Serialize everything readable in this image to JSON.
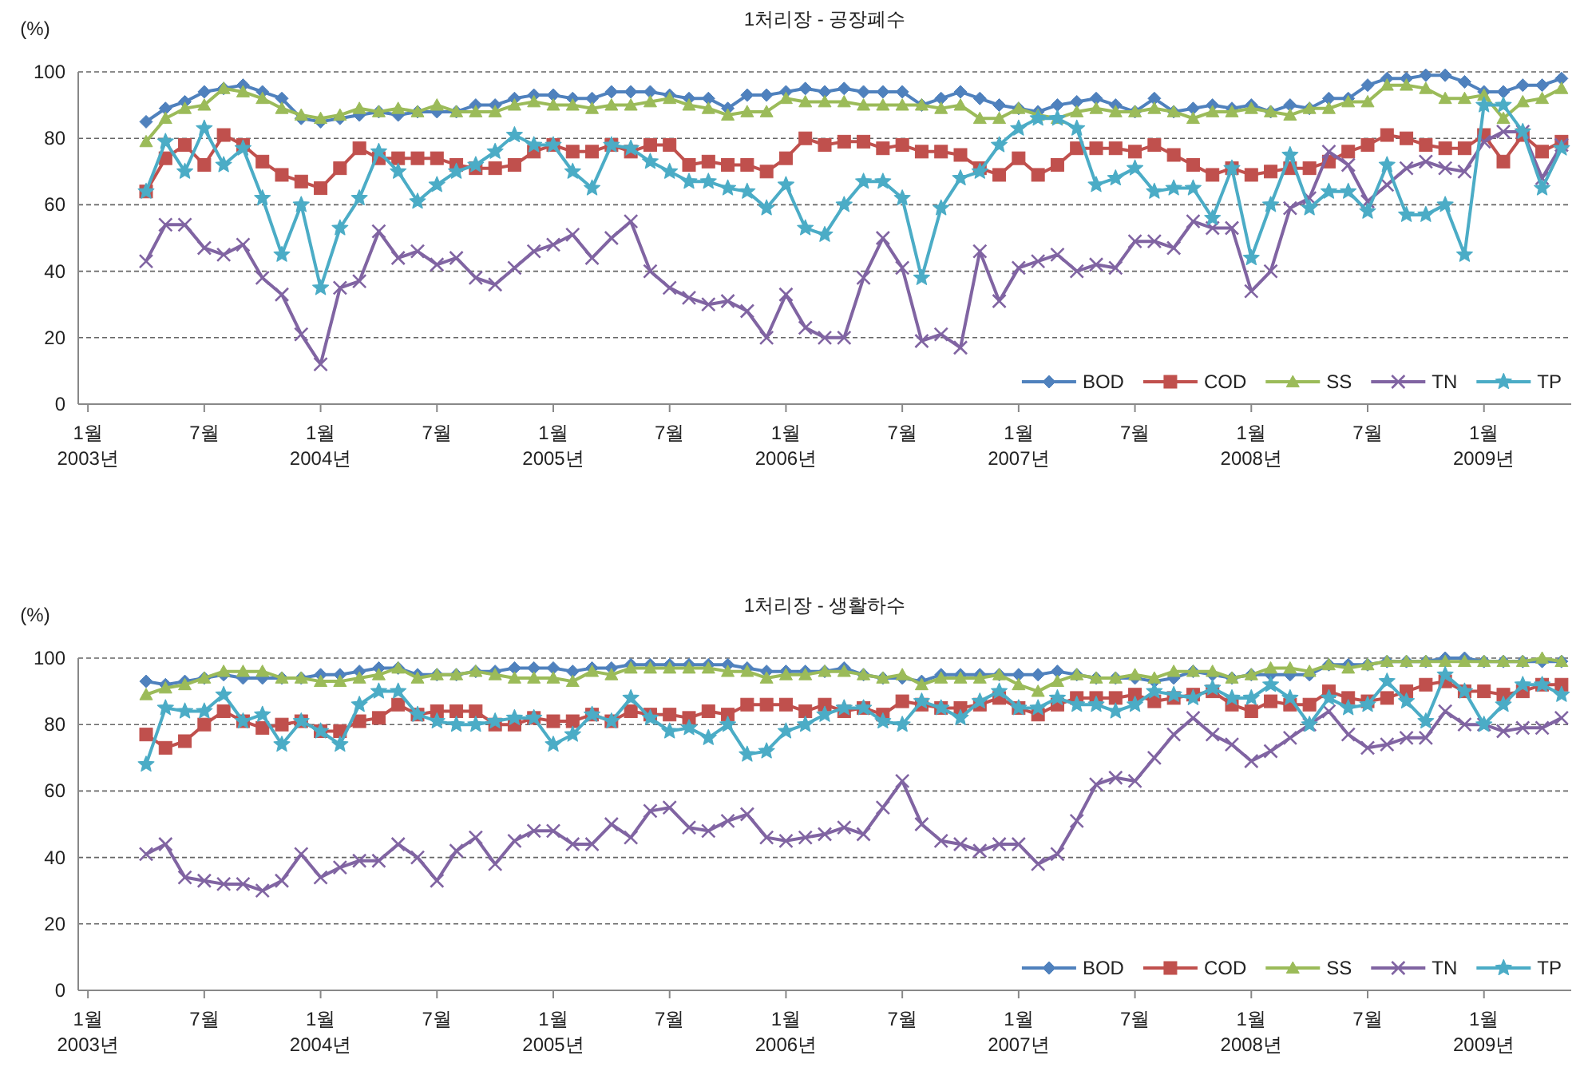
{
  "chart_data": [
    {
      "type": "line",
      "title": "1처리장 - 공장폐수",
      "ylabel": "(%)",
      "line_style": "solid",
      "grid": "y",
      "legend": "bottom right",
      "x": [
        "2003-04",
        "2003-05",
        "2003-06",
        "2003-07",
        "2003-08",
        "2003-09",
        "2003-10",
        "2003-11",
        "2003-12",
        "2004-01",
        "2004-02",
        "2004-03",
        "2004-04",
        "2004-05",
        "2004-06",
        "2004-07",
        "2004-08",
        "2004-09",
        "2004-10",
        "2004-11",
        "2004-12",
        "2005-01",
        "2005-02",
        "2005-03",
        "2005-04",
        "2005-05",
        "2005-06",
        "2005-07",
        "2005-08",
        "2005-09",
        "2005-10",
        "2005-11",
        "2005-12",
        "2006-01",
        "2006-02",
        "2006-03",
        "2006-04",
        "2006-05",
        "2006-06",
        "2006-07",
        "2006-08",
        "2006-09",
        "2006-10",
        "2006-11",
        "2006-12",
        "2007-01",
        "2007-02",
        "2007-03",
        "2007-04",
        "2007-05",
        "2007-06",
        "2007-07",
        "2007-08",
        "2007-09",
        "2007-10",
        "2007-11",
        "2007-12",
        "2008-01",
        "2008-02",
        "2008-03",
        "2008-04",
        "2008-05",
        "2008-06",
        "2008-07",
        "2008-08",
        "2008-09",
        "2008-10",
        "2008-11",
        "2008-12",
        "2009-01",
        "2009-02",
        "2009-03",
        "2009-04",
        "2009-05"
      ],
      "xlim": [
        "2002-12-16",
        "2009-05-16"
      ],
      "xticks": [
        {
          "value": "2003-01",
          "label": "1월\n2003년"
        },
        {
          "value": "2003-07",
          "label": "7월"
        },
        {
          "value": "2004-01",
          "label": "1월\n2004년"
        },
        {
          "value": "2004-07",
          "label": "7월"
        },
        {
          "value": "2005-01",
          "label": "1월\n2005년"
        },
        {
          "value": "2005-07",
          "label": "7월"
        },
        {
          "value": "2006-01",
          "label": "1월\n2006년"
        },
        {
          "value": "2006-07",
          "label": "7월"
        },
        {
          "value": "2007-01",
          "label": "1월\n2007년"
        },
        {
          "value": "2007-07",
          "label": "7월"
        },
        {
          "value": "2008-01",
          "label": "1월\n2008년"
        },
        {
          "value": "2008-07",
          "label": "7월"
        },
        {
          "value": "2009-01",
          "label": "1월\n2009년"
        }
      ],
      "ylim": [
        0,
        100
      ],
      "yticks": [
        0,
        20,
        40,
        60,
        80,
        100
      ],
      "series": [
        {
          "name": "BOD",
          "color": "#4f81bd",
          "marker": "diamond",
          "values": [
            85,
            89,
            91,
            94,
            95,
            96,
            94,
            92,
            86,
            85,
            86,
            87,
            88,
            87,
            88,
            88,
            88,
            90,
            90,
            92,
            93,
            93,
            92,
            92,
            94,
            94,
            94,
            93,
            92,
            92,
            89,
            93,
            93,
            94,
            95,
            94,
            95,
            94,
            94,
            94,
            90,
            92,
            94,
            92,
            90,
            89,
            88,
            90,
            91,
            92,
            90,
            88,
            92,
            88,
            89,
            90,
            89,
            90,
            88,
            90,
            89,
            92,
            92,
            96,
            98,
            98,
            99,
            99,
            97,
            94,
            94,
            96,
            96,
            98
          ]
        },
        {
          "name": "COD",
          "color": "#c0504d",
          "marker": "square",
          "values": [
            64,
            74,
            78,
            72,
            81,
            78,
            73,
            69,
            67,
            65,
            71,
            77,
            74,
            74,
            74,
            74,
            72,
            71,
            71,
            72,
            76,
            78,
            76,
            76,
            78,
            76,
            78,
            78,
            72,
            73,
            72,
            72,
            70,
            74,
            80,
            78,
            79,
            79,
            77,
            78,
            76,
            76,
            75,
            71,
            69,
            74,
            69,
            72,
            77,
            77,
            77,
            76,
            78,
            75,
            72,
            69,
            71,
            69,
            70,
            71,
            71,
            73,
            76,
            78,
            81,
            80,
            78,
            77,
            77,
            81,
            73,
            81,
            76,
            79
          ]
        },
        {
          "name": "SS",
          "color": "#9bbb59",
          "marker": "triangle",
          "values": [
            79,
            86,
            89,
            90,
            95,
            94,
            92,
            89,
            87,
            86,
            87,
            89,
            88,
            89,
            88,
            90,
            88,
            88,
            88,
            90,
            91,
            90,
            90,
            89,
            90,
            90,
            91,
            92,
            90,
            89,
            87,
            88,
            88,
            92,
            91,
            91,
            91,
            90,
            90,
            90,
            90,
            89,
            90,
            86,
            86,
            89,
            87,
            86,
            88,
            89,
            88,
            88,
            89,
            88,
            86,
            88,
            88,
            89,
            88,
            87,
            89,
            89,
            91,
            91,
            96,
            96,
            95,
            92,
            92,
            93,
            86,
            91,
            92,
            95
          ]
        },
        {
          "name": "TN",
          "color": "#8064a2",
          "marker": "cross",
          "values": [
            43,
            54,
            54,
            47,
            45,
            48,
            38,
            33,
            21,
            12,
            35,
            37,
            52,
            44,
            46,
            42,
            44,
            38,
            36,
            41,
            46,
            48,
            51,
            44,
            50,
            55,
            40,
            35,
            32,
            30,
            31,
            28,
            20,
            33,
            23,
            20,
            20,
            38,
            50,
            41,
            19,
            21,
            17,
            46,
            31,
            41,
            43,
            45,
            40,
            42,
            41,
            49,
            49,
            47,
            55,
            53,
            53,
            34,
            40,
            59,
            62,
            76,
            72,
            61,
            66,
            71,
            73,
            71,
            70,
            79,
            82,
            82,
            68,
            78
          ]
        },
        {
          "name": "TP",
          "color": "#4bacc6",
          "marker": "star",
          "values": [
            64,
            79,
            70,
            83,
            72,
            77,
            62,
            45,
            60,
            35,
            53,
            62,
            76,
            70,
            61,
            66,
            70,
            72,
            76,
            81,
            78,
            78,
            70,
            65,
            78,
            77,
            73,
            70,
            67,
            67,
            65,
            64,
            59,
            66,
            53,
            51,
            60,
            67,
            67,
            62,
            38,
            59,
            68,
            70,
            78,
            83,
            86,
            86,
            83,
            66,
            68,
            71,
            64,
            65,
            65,
            56,
            71,
            44,
            60,
            75,
            59,
            64,
            64,
            58,
            72,
            57,
            57,
            60,
            45,
            90,
            90,
            82,
            65,
            77
          ]
        }
      ]
    },
    {
      "type": "line",
      "title": "1처리장 - 생활하수",
      "ylabel": "(%)",
      "line_style": "solid",
      "grid": "y",
      "legend": "bottom right",
      "x": [
        "2003-04",
        "2003-05",
        "2003-06",
        "2003-07",
        "2003-08",
        "2003-09",
        "2003-10",
        "2003-11",
        "2003-12",
        "2004-01",
        "2004-02",
        "2004-03",
        "2004-04",
        "2004-05",
        "2004-06",
        "2004-07",
        "2004-08",
        "2004-09",
        "2004-10",
        "2004-11",
        "2004-12",
        "2005-01",
        "2005-02",
        "2005-03",
        "2005-04",
        "2005-05",
        "2005-06",
        "2005-07",
        "2005-08",
        "2005-09",
        "2005-10",
        "2005-11",
        "2005-12",
        "2006-01",
        "2006-02",
        "2006-03",
        "2006-04",
        "2006-05",
        "2006-06",
        "2006-07",
        "2006-08",
        "2006-09",
        "2006-10",
        "2006-11",
        "2006-12",
        "2007-01",
        "2007-02",
        "2007-03",
        "2007-04",
        "2007-05",
        "2007-06",
        "2007-07",
        "2007-08",
        "2007-09",
        "2007-10",
        "2007-11",
        "2007-12",
        "2008-01",
        "2008-02",
        "2008-03",
        "2008-04",
        "2008-05",
        "2008-06",
        "2008-07",
        "2008-08",
        "2008-09",
        "2008-10",
        "2008-11",
        "2008-12",
        "2009-01",
        "2009-02",
        "2009-03",
        "2009-04",
        "2009-05"
      ],
      "xlim": [
        "2002-12-16",
        "2009-05-16"
      ],
      "xticks": [
        {
          "value": "2003-01",
          "label": "1월\n2003년"
        },
        {
          "value": "2003-07",
          "label": "7월"
        },
        {
          "value": "2004-01",
          "label": "1월\n2004년"
        },
        {
          "value": "2004-07",
          "label": "7월"
        },
        {
          "value": "2005-01",
          "label": "1월\n2005년"
        },
        {
          "value": "2005-07",
          "label": "7월"
        },
        {
          "value": "2006-01",
          "label": "1월\n2006년"
        },
        {
          "value": "2006-07",
          "label": "7월"
        },
        {
          "value": "2007-01",
          "label": "1월\n2007년"
        },
        {
          "value": "2007-07",
          "label": "7월"
        },
        {
          "value": "2008-01",
          "label": "1월\n2008년"
        },
        {
          "value": "2008-07",
          "label": "7월"
        },
        {
          "value": "2009-01",
          "label": "1월\n2009년"
        }
      ],
      "ylim": [
        0,
        100
      ],
      "yticks": [
        0,
        20,
        40,
        60,
        80,
        100
      ],
      "series": [
        {
          "name": "BOD",
          "color": "#4f81bd",
          "marker": "diamond",
          "values": [
            93,
            92,
            93,
            94,
            95,
            94,
            94,
            94,
            94,
            95,
            95,
            96,
            97,
            97,
            95,
            95,
            95,
            96,
            96,
            97,
            97,
            97,
            96,
            97,
            97,
            98,
            98,
            98,
            98,
            98,
            98,
            97,
            96,
            96,
            96,
            96,
            97,
            95,
            94,
            94,
            93,
            95,
            95,
            95,
            95,
            95,
            95,
            96,
            95,
            94,
            94,
            94,
            93,
            94,
            96,
            95,
            94,
            95,
            95,
            95,
            95,
            98,
            98,
            98,
            99,
            99,
            99,
            100,
            100,
            99,
            99,
            99,
            99,
            99
          ]
        },
        {
          "name": "COD",
          "color": "#c0504d",
          "marker": "square",
          "values": [
            77,
            73,
            75,
            80,
            84,
            81,
            79,
            80,
            81,
            78,
            78,
            81,
            82,
            86,
            83,
            84,
            84,
            84,
            80,
            80,
            82,
            81,
            81,
            83,
            81,
            84,
            83,
            83,
            82,
            84,
            83,
            86,
            86,
            86,
            84,
            86,
            84,
            85,
            83,
            87,
            86,
            85,
            85,
            86,
            88,
            85,
            83,
            86,
            88,
            88,
            88,
            89,
            87,
            88,
            89,
            90,
            86,
            84,
            87,
            86,
            86,
            90,
            88,
            87,
            88,
            90,
            92,
            93,
            90,
            90,
            89,
            90,
            92,
            92
          ]
        },
        {
          "name": "SS",
          "color": "#9bbb59",
          "marker": "triangle",
          "values": [
            89,
            91,
            92,
            94,
            96,
            96,
            96,
            94,
            94,
            93,
            93,
            94,
            95,
            97,
            94,
            95,
            95,
            96,
            95,
            94,
            94,
            94,
            93,
            96,
            95,
            97,
            97,
            97,
            97,
            97,
            96,
            96,
            94,
            95,
            95,
            96,
            96,
            95,
            94,
            95,
            92,
            94,
            94,
            94,
            95,
            92,
            90,
            93,
            95,
            94,
            94,
            95,
            94,
            96,
            96,
            96,
            94,
            95,
            97,
            97,
            96,
            98,
            97,
            98,
            99,
            99,
            99,
            99,
            99,
            99,
            99,
            99,
            100,
            99
          ]
        },
        {
          "name": "TN",
          "color": "#8064a2",
          "marker": "cross",
          "values": [
            41,
            44,
            34,
            33,
            32,
            32,
            30,
            33,
            41,
            34,
            37,
            39,
            39,
            44,
            40,
            33,
            42,
            46,
            38,
            45,
            48,
            48,
            44,
            44,
            50,
            46,
            54,
            55,
            49,
            48,
            51,
            53,
            46,
            45,
            46,
            47,
            49,
            47,
            55,
            63,
            50,
            45,
            44,
            42,
            44,
            44,
            38,
            41,
            51,
            62,
            64,
            63,
            70,
            77,
            82,
            77,
            74,
            69,
            72,
            76,
            80,
            84,
            77,
            73,
            74,
            76,
            76,
            84,
            80,
            80,
            78,
            79,
            79,
            82
          ]
        },
        {
          "name": "TP",
          "color": "#4bacc6",
          "marker": "star",
          "values": [
            68,
            85,
            84,
            84,
            89,
            81,
            83,
            74,
            81,
            78,
            74,
            86,
            90,
            90,
            83,
            81,
            80,
            80,
            81,
            82,
            82,
            74,
            77,
            83,
            81,
            88,
            82,
            78,
            79,
            76,
            80,
            71,
            72,
            78,
            80,
            83,
            85,
            85,
            81,
            80,
            87,
            85,
            82,
            87,
            90,
            85,
            85,
            88,
            86,
            86,
            84,
            86,
            90,
            89,
            88,
            91,
            88,
            88,
            92,
            88,
            80,
            88,
            85,
            86,
            93,
            87,
            81,
            95,
            90,
            80,
            86,
            92,
            92,
            89
          ]
        }
      ]
    }
  ]
}
